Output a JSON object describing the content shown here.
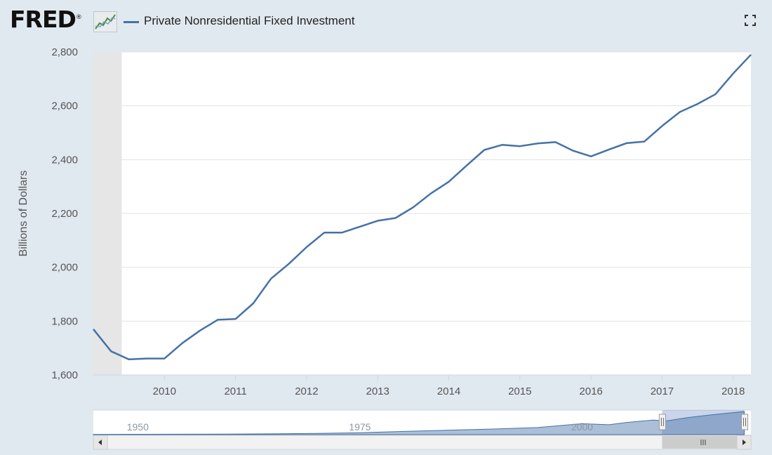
{
  "header": {
    "logo_text": "FRED",
    "logo_registered": "®",
    "fullscreen_icon": "fullscreen-icon"
  },
  "colors": {
    "series": "#4572a7",
    "navigator_fill": "#9db3d1",
    "recession_shade": "#e6e6e6",
    "background": "#e1e9f0"
  },
  "chart_data": {
    "type": "line",
    "title": "",
    "xlabel": "",
    "ylabel": "Billions of Dollars",
    "ylim": [
      1600,
      2800
    ],
    "xlim": [
      2009.0,
      2018.25
    ],
    "yticks": [
      1600,
      1800,
      2000,
      2200,
      2400,
      2600,
      2800
    ],
    "ytick_labels": [
      "1,600",
      "1,800",
      "2,000",
      "2,200",
      "2,400",
      "2,600",
      "2,800"
    ],
    "xticks": [
      2010,
      2011,
      2012,
      2013,
      2014,
      2015,
      2016,
      2017,
      2018
    ],
    "xtick_labels": [
      "2010",
      "2011",
      "2012",
      "2013",
      "2014",
      "2015",
      "2016",
      "2017",
      "2018"
    ],
    "recession_shading": [
      [
        2009.0,
        2009.4
      ]
    ],
    "series": [
      {
        "name": "Private Nonresidential Fixed Investment",
        "x": [
          2009.0,
          2009.25,
          2009.5,
          2009.75,
          2010.0,
          2010.25,
          2010.5,
          2010.75,
          2011.0,
          2011.25,
          2011.5,
          2011.75,
          2012.0,
          2012.25,
          2012.5,
          2012.75,
          2013.0,
          2013.25,
          2013.5,
          2013.75,
          2014.0,
          2014.25,
          2014.5,
          2014.75,
          2015.0,
          2015.25,
          2015.5,
          2015.75,
          2016.0,
          2016.25,
          2016.5,
          2016.75,
          2017.0,
          2017.25,
          2017.5,
          2017.75,
          2018.0,
          2018.25
        ],
        "values": [
          1770,
          1688,
          1658,
          1661,
          1661,
          1718,
          1765,
          1805,
          1808,
          1866,
          1958,
          2013,
          2075,
          2129,
          2129,
          2151,
          2173,
          2183,
          2223,
          2275,
          2318,
          2378,
          2436,
          2455,
          2450,
          2460,
          2465,
          2433,
          2412,
          2437,
          2461,
          2467,
          2525,
          2577,
          2607,
          2643,
          2720,
          2790
        ]
      }
    ],
    "navigator": {
      "labels": [
        "1950",
        "1975",
        "2000"
      ],
      "label_years": [
        1950,
        1975,
        2000
      ],
      "range": [
        1945,
        2019
      ],
      "selected": [
        2009.0,
        2018.25
      ],
      "series_x": [
        1945,
        1950,
        1955,
        1960,
        1965,
        1970,
        1975,
        1980,
        1985,
        1990,
        1995,
        2000,
        2003,
        2005,
        2008,
        2009.5,
        2012,
        2015,
        2018.25
      ],
      "series_values": [
        30,
        40,
        55,
        70,
        95,
        150,
        230,
        390,
        540,
        680,
        860,
        1320,
        1200,
        1480,
        1760,
        1660,
        2075,
        2450,
        2790
      ],
      "nav_scale_max": 2800
    }
  }
}
